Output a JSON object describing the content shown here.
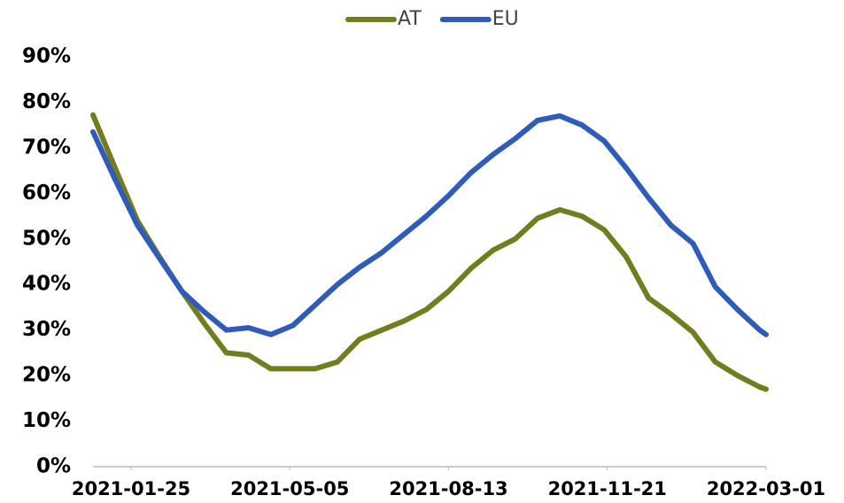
{
  "chart_data": {
    "type": "line",
    "x": [
      "2021-01-01",
      "2021-01-15",
      "2021-01-29",
      "2021-02-12",
      "2021-02-26",
      "2021-03-12",
      "2021-03-26",
      "2021-04-09",
      "2021-04-23",
      "2021-05-07",
      "2021-05-21",
      "2021-06-04",
      "2021-06-18",
      "2021-07-02",
      "2021-07-16",
      "2021-07-30",
      "2021-08-13",
      "2021-08-27",
      "2021-09-10",
      "2021-09-24",
      "2021-10-08",
      "2021-10-22",
      "2021-11-05",
      "2021-11-19",
      "2021-12-03",
      "2021-12-17",
      "2021-12-31",
      "2022-01-14",
      "2022-01-28",
      "2022-02-11",
      "2022-02-25",
      "2022-03-01"
    ],
    "series": [
      {
        "name": "AT",
        "color": "#737d1f",
        "values": [
          77.2,
          65.5,
          54,
          46,
          38.5,
          31.5,
          25,
          24.5,
          21.5,
          21.5,
          21.5,
          23,
          28,
          30,
          32,
          34.5,
          38.5,
          43.5,
          47.5,
          50,
          54.5,
          56.4,
          55,
          52,
          46,
          37,
          33.5,
          29.5,
          23,
          20,
          17.5,
          17
        ]
      },
      {
        "name": "EU",
        "color": "#2e5cb8",
        "values": [
          73.5,
          63,
          53,
          45.7,
          38.5,
          34,
          30,
          30.5,
          29,
          31,
          35.5,
          40,
          43.8,
          47,
          51,
          55,
          59.5,
          64.5,
          68.5,
          72,
          76,
          77,
          75,
          71.5,
          65.5,
          59,
          53,
          49,
          39.5,
          34.5,
          30,
          29
        ]
      }
    ],
    "xlim": [
      "2021-01-01",
      "2022-03-01"
    ],
    "xticks": [
      "2021-01-25",
      "2021-05-05",
      "2021-08-13",
      "2021-11-21",
      "2022-03-01"
    ],
    "ylim": [
      0,
      90
    ],
    "yticks": [
      {
        "value": 0,
        "label": "0%"
      },
      {
        "value": 10,
        "label": "10%"
      },
      {
        "value": 20,
        "label": "20%"
      },
      {
        "value": 30,
        "label": "30%"
      },
      {
        "value": 40,
        "label": "40%"
      },
      {
        "value": 50,
        "label": "50%"
      },
      {
        "value": 60,
        "label": "60%"
      },
      {
        "value": 70,
        "label": "70%"
      },
      {
        "value": 80,
        "label": "80%"
      },
      {
        "value": 90,
        "label": "90%"
      }
    ],
    "legend": "top",
    "grid": false
  }
}
